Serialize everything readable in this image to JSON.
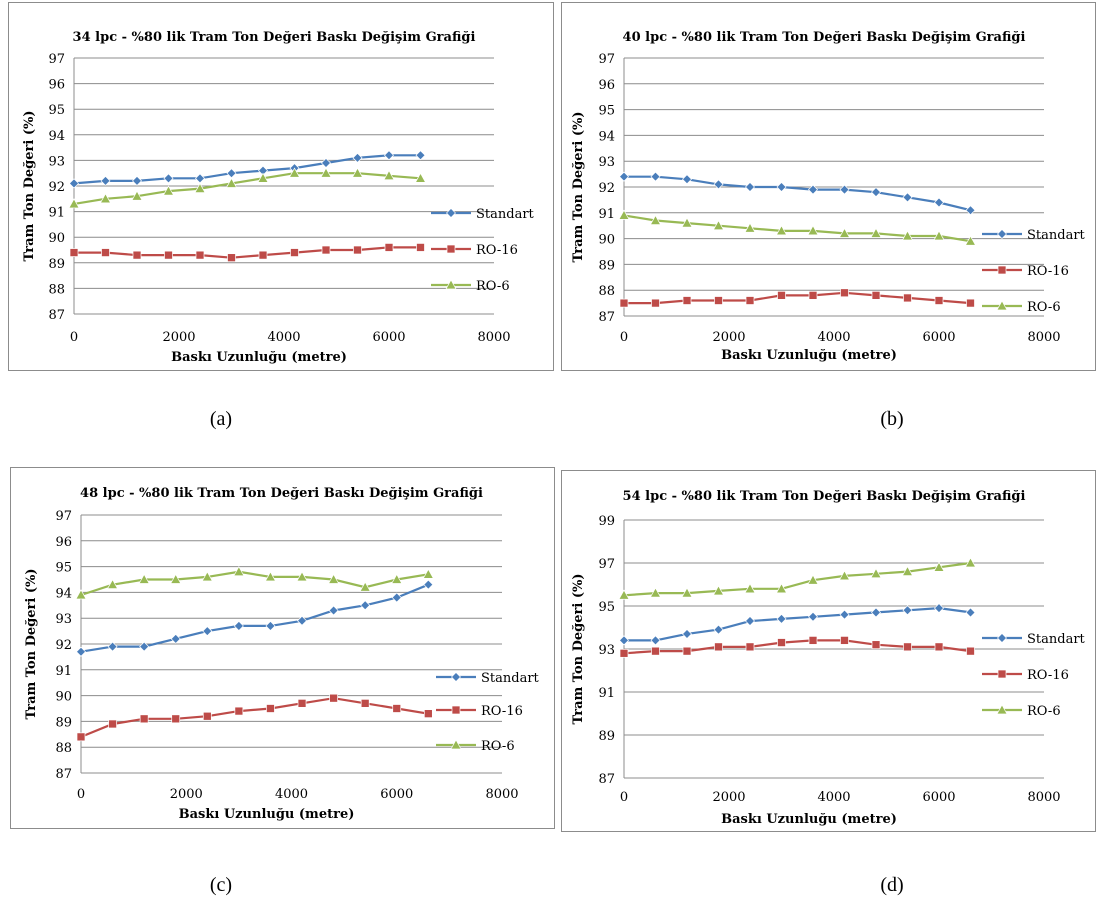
{
  "chart_data": [
    {
      "type": "line",
      "panel_label": "(a)",
      "title": "34 lpc - %80 lik Tram Ton Değeri Baskı Değişim Grafiği",
      "xlabel": "Baskı Uzunluğu (metre)",
      "ylabel": "Tram Ton Değeri (%)",
      "xlim": [
        0,
        8000
      ],
      "ylim": [
        87,
        97
      ],
      "xticks": [
        0,
        2000,
        4000,
        6000,
        8000
      ],
      "yticks": [
        87,
        88,
        89,
        90,
        91,
        92,
        93,
        94,
        95,
        96,
        97
      ],
      "grid": "horizontal",
      "legend": "right",
      "x": [
        0,
        600,
        1200,
        1800,
        2400,
        3000,
        3600,
        4200,
        4800,
        5400,
        6000,
        6600
      ],
      "series": [
        {
          "name": "Standart",
          "color": "#4a7ebb",
          "marker": "diamond",
          "values": [
            92.1,
            92.2,
            92.2,
            92.3,
            92.3,
            92.5,
            92.6,
            92.7,
            92.9,
            93.1,
            93.2,
            93.2
          ]
        },
        {
          "name": "RO-16",
          "color": "#be4b48",
          "marker": "square",
          "values": [
            89.4,
            89.4,
            89.3,
            89.3,
            89.3,
            89.2,
            89.3,
            89.4,
            89.5,
            89.5,
            89.6,
            89.6
          ]
        },
        {
          "name": "RO-6",
          "color": "#98b954",
          "marker": "triangle",
          "values": [
            91.3,
            91.5,
            91.6,
            91.8,
            91.9,
            92.1,
            92.3,
            92.5,
            92.5,
            92.5,
            92.4,
            92.3
          ]
        }
      ]
    },
    {
      "type": "line",
      "panel_label": "(b)",
      "title": "40 lpc - %80 lik Tram Ton Değeri Baskı Değişim Grafiği",
      "xlabel": "Baskı Uzunluğu (metre)",
      "ylabel": "Tram Ton Değeri (%)",
      "xlim": [
        0,
        8000
      ],
      "ylim": [
        87,
        97
      ],
      "xticks": [
        0,
        2000,
        4000,
        6000,
        8000
      ],
      "yticks": [
        87,
        88,
        89,
        90,
        91,
        92,
        93,
        94,
        95,
        96,
        97
      ],
      "grid": "horizontal",
      "legend": "right",
      "x": [
        0,
        600,
        1200,
        1800,
        2400,
        3000,
        3600,
        4200,
        4800,
        5400,
        6000,
        6600
      ],
      "series": [
        {
          "name": "Standart",
          "color": "#4a7ebb",
          "marker": "diamond",
          "values": [
            92.4,
            92.4,
            92.3,
            92.1,
            92.0,
            92.0,
            91.9,
            91.9,
            91.8,
            91.6,
            91.4,
            91.1
          ]
        },
        {
          "name": "RO-16",
          "color": "#be4b48",
          "marker": "square",
          "values": [
            87.5,
            87.5,
            87.6,
            87.6,
            87.6,
            87.8,
            87.8,
            87.9,
            87.8,
            87.7,
            87.6,
            87.5
          ]
        },
        {
          "name": "RO-6",
          "color": "#98b954",
          "marker": "triangle",
          "values": [
            90.9,
            90.7,
            90.6,
            90.5,
            90.4,
            90.3,
            90.3,
            90.2,
            90.2,
            90.1,
            90.1,
            89.9
          ]
        }
      ]
    },
    {
      "type": "line",
      "panel_label": "(c)",
      "title": "48 lpc - %80 lik Tram Ton Değeri Baskı Değişim Grafiği",
      "xlabel": "Baskı Uzunluğu (metre)",
      "ylabel": "Tram Ton Değeri (%)",
      "xlim": [
        0,
        8000
      ],
      "ylim": [
        87,
        97
      ],
      "xticks": [
        0,
        2000,
        4000,
        6000,
        8000
      ],
      "yticks": [
        87,
        88,
        89,
        90,
        91,
        92,
        93,
        94,
        95,
        96,
        97
      ],
      "grid": "horizontal",
      "legend": "right",
      "x": [
        0,
        600,
        1200,
        1800,
        2400,
        3000,
        3600,
        4200,
        4800,
        5400,
        6000,
        6600
      ],
      "series": [
        {
          "name": "Standart",
          "color": "#4a7ebb",
          "marker": "diamond",
          "values": [
            91.7,
            91.9,
            91.9,
            92.2,
            92.5,
            92.7,
            92.7,
            92.9,
            93.3,
            93.5,
            93.8,
            94.3
          ]
        },
        {
          "name": "RO-16",
          "color": "#be4b48",
          "marker": "square",
          "values": [
            88.4,
            88.9,
            89.1,
            89.1,
            89.2,
            89.4,
            89.5,
            89.7,
            89.9,
            89.7,
            89.5,
            89.3
          ]
        },
        {
          "name": "RO-6",
          "color": "#98b954",
          "marker": "triangle",
          "values": [
            93.9,
            94.3,
            94.5,
            94.5,
            94.6,
            94.8,
            94.6,
            94.6,
            94.5,
            94.2,
            94.5,
            94.7
          ]
        }
      ]
    },
    {
      "type": "line",
      "panel_label": "(d)",
      "title": "54 lpc - %80 lik Tram Ton Değeri Baskı Değişim Grafiği",
      "xlabel": "Baskı Uzunluğu (metre)",
      "ylabel": "Tram Ton Değeri (%)",
      "xlim": [
        0,
        8000
      ],
      "ylim": [
        87,
        99
      ],
      "xticks": [
        0,
        2000,
        4000,
        6000,
        8000
      ],
      "yticks": [
        87,
        89,
        91,
        93,
        95,
        97,
        99
      ],
      "grid": "horizontal",
      "legend": "right",
      "x": [
        0,
        600,
        1200,
        1800,
        2400,
        3000,
        3600,
        4200,
        4800,
        5400,
        6000,
        6600
      ],
      "series": [
        {
          "name": "Standart",
          "color": "#4a7ebb",
          "marker": "diamond",
          "values": [
            93.4,
            93.4,
            93.7,
            93.9,
            94.3,
            94.4,
            94.5,
            94.6,
            94.7,
            94.8,
            94.9,
            94.7
          ]
        },
        {
          "name": "RO-16",
          "color": "#be4b48",
          "marker": "square",
          "values": [
            92.8,
            92.9,
            92.9,
            93.1,
            93.1,
            93.3,
            93.4,
            93.4,
            93.2,
            93.1,
            93.1,
            92.9
          ]
        },
        {
          "name": "RO-6",
          "color": "#98b954",
          "marker": "triangle",
          "values": [
            95.5,
            95.6,
            95.6,
            95.7,
            95.8,
            95.8,
            96.2,
            96.4,
            96.5,
            96.6,
            96.8,
            97.0
          ]
        }
      ]
    }
  ]
}
